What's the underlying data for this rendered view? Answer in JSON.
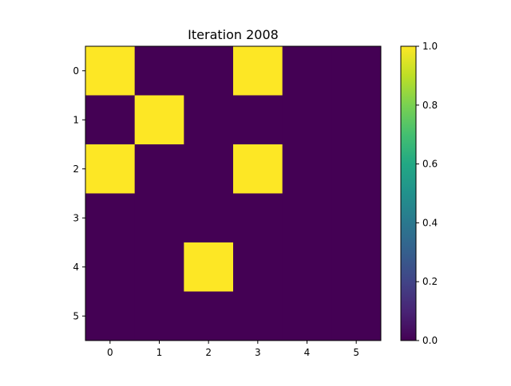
{
  "chart_data": {
    "type": "heatmap",
    "title": "Iteration 2008",
    "xlabel": "",
    "ylabel": "",
    "x_ticks": [
      "0",
      "1",
      "2",
      "3",
      "4",
      "5"
    ],
    "y_ticks": [
      "0",
      "1",
      "2",
      "3",
      "4",
      "5"
    ],
    "values": [
      [
        1,
        0,
        0,
        1,
        0,
        0
      ],
      [
        0,
        1,
        0,
        0,
        0,
        0
      ],
      [
        1,
        0,
        0,
        1,
        0,
        0
      ],
      [
        0,
        0,
        0,
        0,
        0,
        0
      ],
      [
        0,
        0,
        1,
        0,
        0,
        0
      ],
      [
        0,
        0,
        0,
        0,
        0,
        0
      ]
    ],
    "colormap": "viridis",
    "vmin": 0.0,
    "vmax": 1.0,
    "colorbar_ticks": [
      "0.0",
      "0.2",
      "0.4",
      "0.6",
      "0.8",
      "1.0"
    ],
    "colors": {
      "low": "#440154",
      "high": "#fde725"
    }
  }
}
